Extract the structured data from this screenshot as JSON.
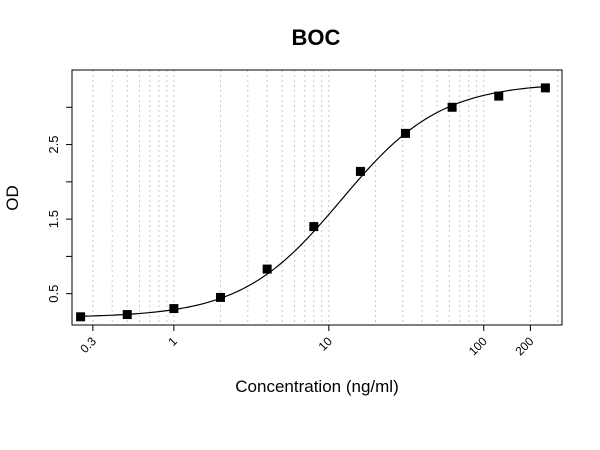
{
  "chart_data": {
    "type": "scatter",
    "title": "BOC",
    "xlabel": "Concentration (ng/ml)",
    "ylabel": "OD",
    "x_scale": "log",
    "xlim": [
      0.22,
      320
    ],
    "ylim": [
      0.08,
      3.5
    ],
    "x_ticks": [
      {
        "value": 0.3,
        "label": "0.3"
      },
      {
        "value": 1,
        "label": "1"
      },
      {
        "value": 10,
        "label": "10"
      },
      {
        "value": 100,
        "label": "100"
      },
      {
        "value": 200,
        "label": "200"
      }
    ],
    "y_ticks": [
      {
        "value": 0.5,
        "label": "0.5"
      },
      {
        "value": 1.0,
        "label": ""
      },
      {
        "value": 1.5,
        "label": "1.5"
      },
      {
        "value": 2.0,
        "label": ""
      },
      {
        "value": 2.5,
        "label": "2.5"
      },
      {
        "value": 3.0,
        "label": ""
      }
    ],
    "grid": "vertical dotted at log minor ticks",
    "series": [
      {
        "marker": "square",
        "color": "#000000",
        "x": [
          0.25,
          0.5,
          1,
          2,
          4,
          8,
          16,
          31.25,
          62.5,
          125,
          250
        ],
        "y": [
          0.19,
          0.22,
          0.3,
          0.45,
          0.83,
          1.4,
          2.14,
          2.65,
          3.0,
          3.15,
          3.26
        ]
      }
    ],
    "fit_curve": {
      "model": "4PL",
      "bottom": 0.18,
      "top": 3.33,
      "ec50": 12,
      "hill": 1.35,
      "color": "#000000"
    }
  }
}
